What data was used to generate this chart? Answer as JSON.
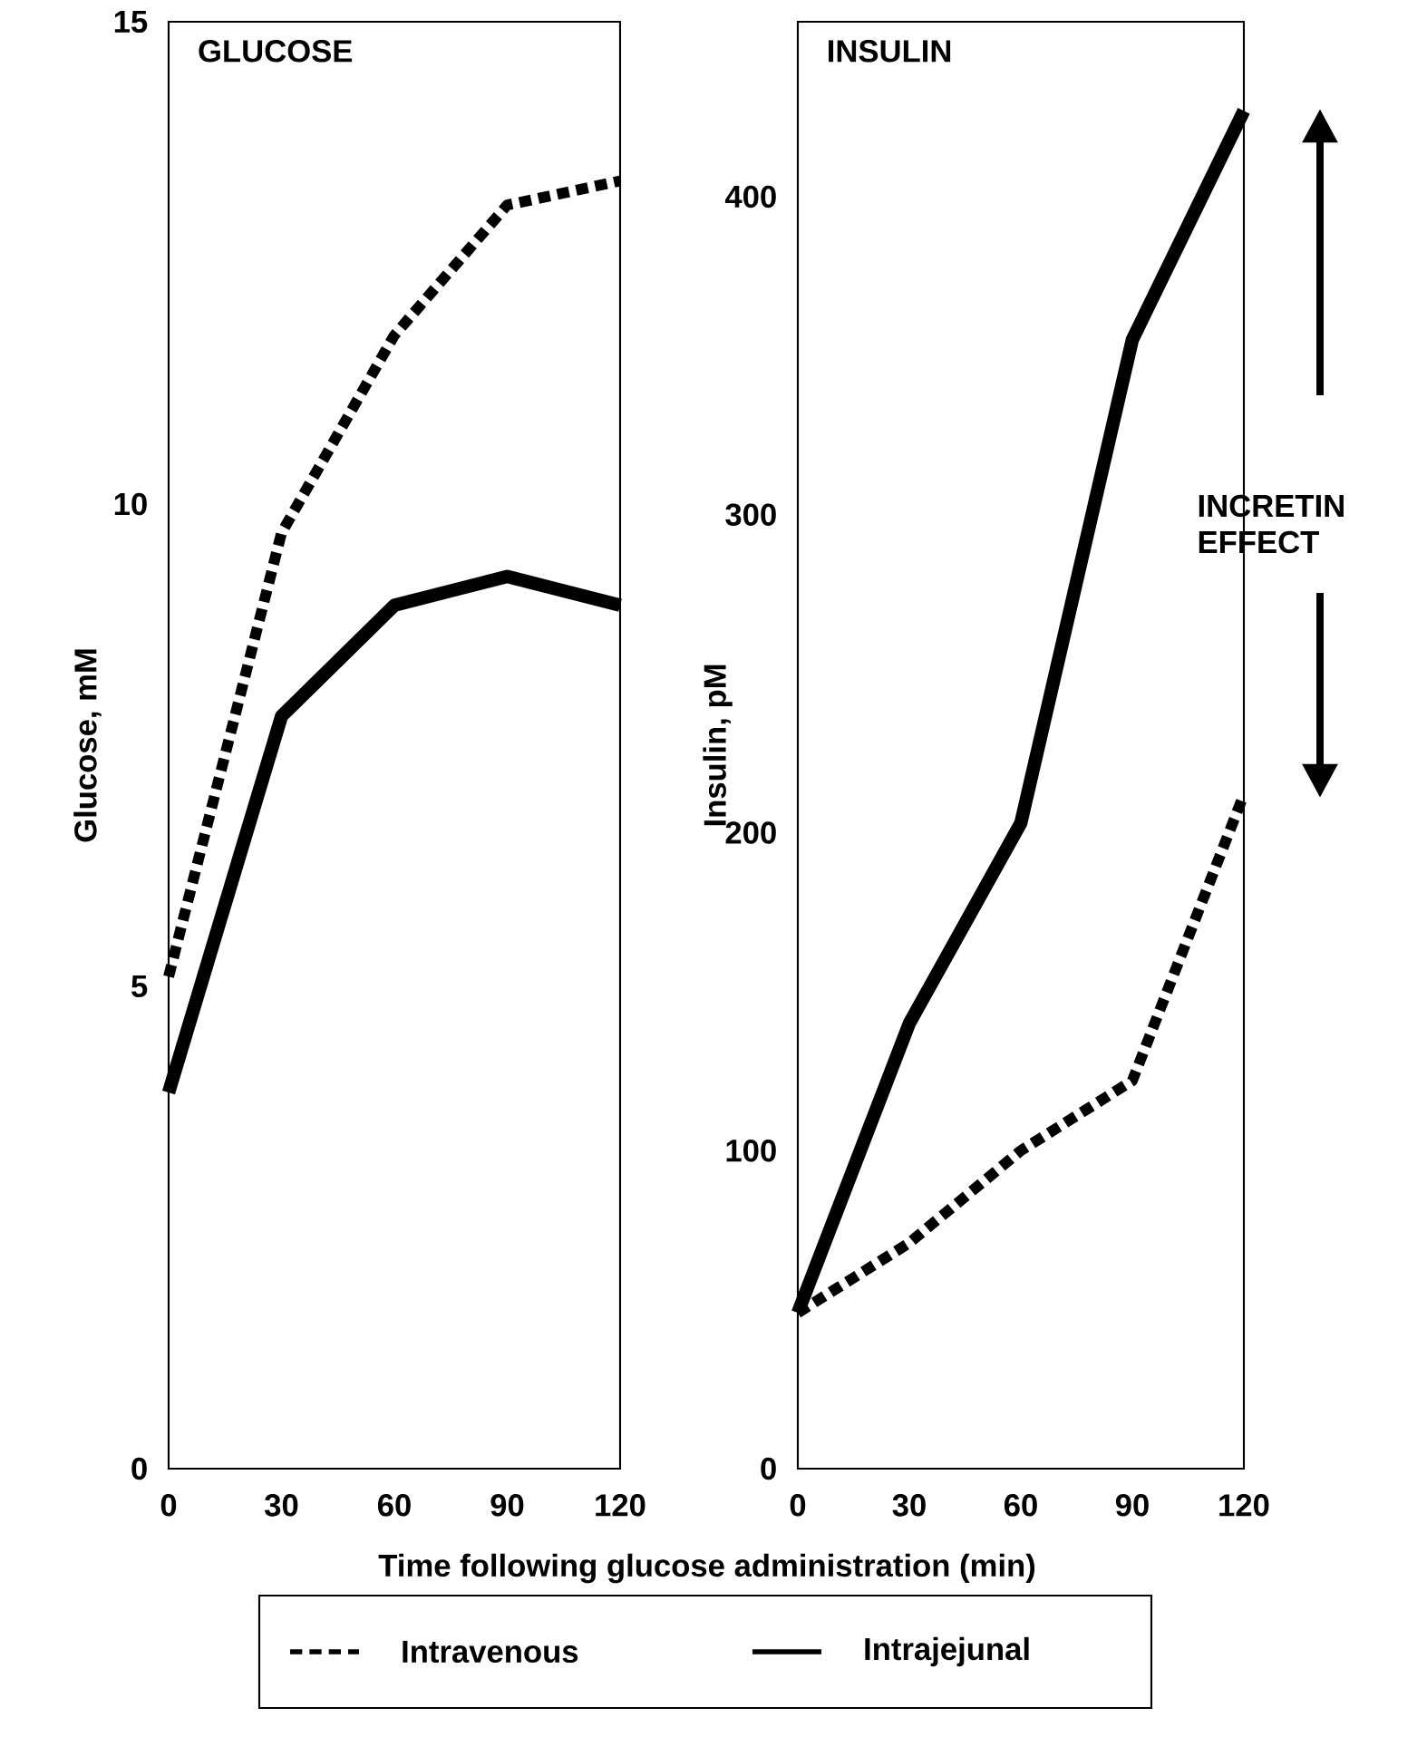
{
  "chart_data": [
    {
      "type": "line",
      "title": "GLUCOSE",
      "ylabel": "Glucose, mM",
      "xlabel": "Time following glucose administration (min)",
      "x": [
        0,
        30,
        60,
        90,
        120
      ],
      "xlim": [
        0,
        120
      ],
      "xticks": [
        0,
        30,
        60,
        90,
        120
      ],
      "ylim": [
        0,
        15
      ],
      "yticks": [
        0,
        5,
        10,
        15
      ],
      "legend": "bottom",
      "series": [
        {
          "name": "Intravenous",
          "color": "#000000",
          "line_style": "dotted",
          "values": [
            5.1,
            9.7,
            11.75,
            13.1,
            13.35
          ]
        },
        {
          "name": "Intrajejunal",
          "color": "#000000",
          "line_style": "solid",
          "values": [
            3.9,
            7.8,
            8.95,
            9.25,
            8.95
          ]
        }
      ]
    },
    {
      "type": "line",
      "title": "INSULIN",
      "ylabel": "Insulin, pM",
      "x": [
        0,
        30,
        60,
        90,
        120
      ],
      "xlim": [
        0,
        120
      ],
      "xticks": [
        0,
        30,
        60,
        90,
        120
      ],
      "ylim": [
        0,
        455
      ],
      "yticks": [
        0,
        100,
        200,
        300,
        400
      ],
      "annotations": [
        "INCRETIN EFFECT"
      ],
      "series": [
        {
          "color": "#000000",
          "line_style": "dotted",
          "values": [
            49,
            71,
            100,
            122,
            212
          ]
        },
        {
          "color": "#000000",
          "line_style": "solid",
          "values": [
            49,
            140,
            203,
            355,
            427
          ]
        }
      ]
    }
  ]
}
